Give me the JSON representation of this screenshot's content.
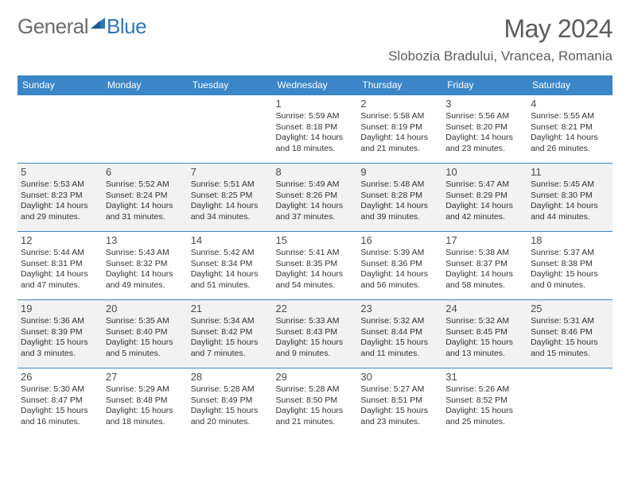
{
  "logo": {
    "text1": "General",
    "text2": "Blue",
    "color1": "#6b6b6b",
    "color2": "#2f78b7",
    "triangle_color": "#2f78b7"
  },
  "header": {
    "title": "May 2024",
    "location": "Slobozia Bradului, Vrancea, Romania"
  },
  "style": {
    "header_row_bg": "#3a86c8",
    "header_row_fg": "#ffffff",
    "row_border": "#3a86c8",
    "even_row_bg": "#f2f2f2",
    "odd_row_bg": "#ffffff",
    "text_color": "#333333",
    "title_color": "#5c5c5c",
    "cell_fontsize": 10.5,
    "daynum_fontsize": 13,
    "header_fontsize": 12
  },
  "days_of_week": [
    "Sunday",
    "Monday",
    "Tuesday",
    "Wednesday",
    "Thursday",
    "Friday",
    "Saturday"
  ],
  "weeks": [
    [
      null,
      null,
      null,
      {
        "n": "1",
        "sr": "5:59 AM",
        "ss": "8:18 PM",
        "dl": "14 hours and 18 minutes."
      },
      {
        "n": "2",
        "sr": "5:58 AM",
        "ss": "8:19 PM",
        "dl": "14 hours and 21 minutes."
      },
      {
        "n": "3",
        "sr": "5:56 AM",
        "ss": "8:20 PM",
        "dl": "14 hours and 23 minutes."
      },
      {
        "n": "4",
        "sr": "5:55 AM",
        "ss": "8:21 PM",
        "dl": "14 hours and 26 minutes."
      }
    ],
    [
      {
        "n": "5",
        "sr": "5:53 AM",
        "ss": "8:23 PM",
        "dl": "14 hours and 29 minutes."
      },
      {
        "n": "6",
        "sr": "5:52 AM",
        "ss": "8:24 PM",
        "dl": "14 hours and 31 minutes."
      },
      {
        "n": "7",
        "sr": "5:51 AM",
        "ss": "8:25 PM",
        "dl": "14 hours and 34 minutes."
      },
      {
        "n": "8",
        "sr": "5:49 AM",
        "ss": "8:26 PM",
        "dl": "14 hours and 37 minutes."
      },
      {
        "n": "9",
        "sr": "5:48 AM",
        "ss": "8:28 PM",
        "dl": "14 hours and 39 minutes."
      },
      {
        "n": "10",
        "sr": "5:47 AM",
        "ss": "8:29 PM",
        "dl": "14 hours and 42 minutes."
      },
      {
        "n": "11",
        "sr": "5:45 AM",
        "ss": "8:30 PM",
        "dl": "14 hours and 44 minutes."
      }
    ],
    [
      {
        "n": "12",
        "sr": "5:44 AM",
        "ss": "8:31 PM",
        "dl": "14 hours and 47 minutes."
      },
      {
        "n": "13",
        "sr": "5:43 AM",
        "ss": "8:32 PM",
        "dl": "14 hours and 49 minutes."
      },
      {
        "n": "14",
        "sr": "5:42 AM",
        "ss": "8:34 PM",
        "dl": "14 hours and 51 minutes."
      },
      {
        "n": "15",
        "sr": "5:41 AM",
        "ss": "8:35 PM",
        "dl": "14 hours and 54 minutes."
      },
      {
        "n": "16",
        "sr": "5:39 AM",
        "ss": "8:36 PM",
        "dl": "14 hours and 56 minutes."
      },
      {
        "n": "17",
        "sr": "5:38 AM",
        "ss": "8:37 PM",
        "dl": "14 hours and 58 minutes."
      },
      {
        "n": "18",
        "sr": "5:37 AM",
        "ss": "8:38 PM",
        "dl": "15 hours and 0 minutes."
      }
    ],
    [
      {
        "n": "19",
        "sr": "5:36 AM",
        "ss": "8:39 PM",
        "dl": "15 hours and 3 minutes."
      },
      {
        "n": "20",
        "sr": "5:35 AM",
        "ss": "8:40 PM",
        "dl": "15 hours and 5 minutes."
      },
      {
        "n": "21",
        "sr": "5:34 AM",
        "ss": "8:42 PM",
        "dl": "15 hours and 7 minutes."
      },
      {
        "n": "22",
        "sr": "5:33 AM",
        "ss": "8:43 PM",
        "dl": "15 hours and 9 minutes."
      },
      {
        "n": "23",
        "sr": "5:32 AM",
        "ss": "8:44 PM",
        "dl": "15 hours and 11 minutes."
      },
      {
        "n": "24",
        "sr": "5:32 AM",
        "ss": "8:45 PM",
        "dl": "15 hours and 13 minutes."
      },
      {
        "n": "25",
        "sr": "5:31 AM",
        "ss": "8:46 PM",
        "dl": "15 hours and 15 minutes."
      }
    ],
    [
      {
        "n": "26",
        "sr": "5:30 AM",
        "ss": "8:47 PM",
        "dl": "15 hours and 16 minutes."
      },
      {
        "n": "27",
        "sr": "5:29 AM",
        "ss": "8:48 PM",
        "dl": "15 hours and 18 minutes."
      },
      {
        "n": "28",
        "sr": "5:28 AM",
        "ss": "8:49 PM",
        "dl": "15 hours and 20 minutes."
      },
      {
        "n": "29",
        "sr": "5:28 AM",
        "ss": "8:50 PM",
        "dl": "15 hours and 21 minutes."
      },
      {
        "n": "30",
        "sr": "5:27 AM",
        "ss": "8:51 PM",
        "dl": "15 hours and 23 minutes."
      },
      {
        "n": "31",
        "sr": "5:26 AM",
        "ss": "8:52 PM",
        "dl": "15 hours and 25 minutes."
      },
      null
    ]
  ],
  "labels": {
    "sunrise": "Sunrise: ",
    "sunset": "Sunset: ",
    "daylight": "Daylight: "
  }
}
